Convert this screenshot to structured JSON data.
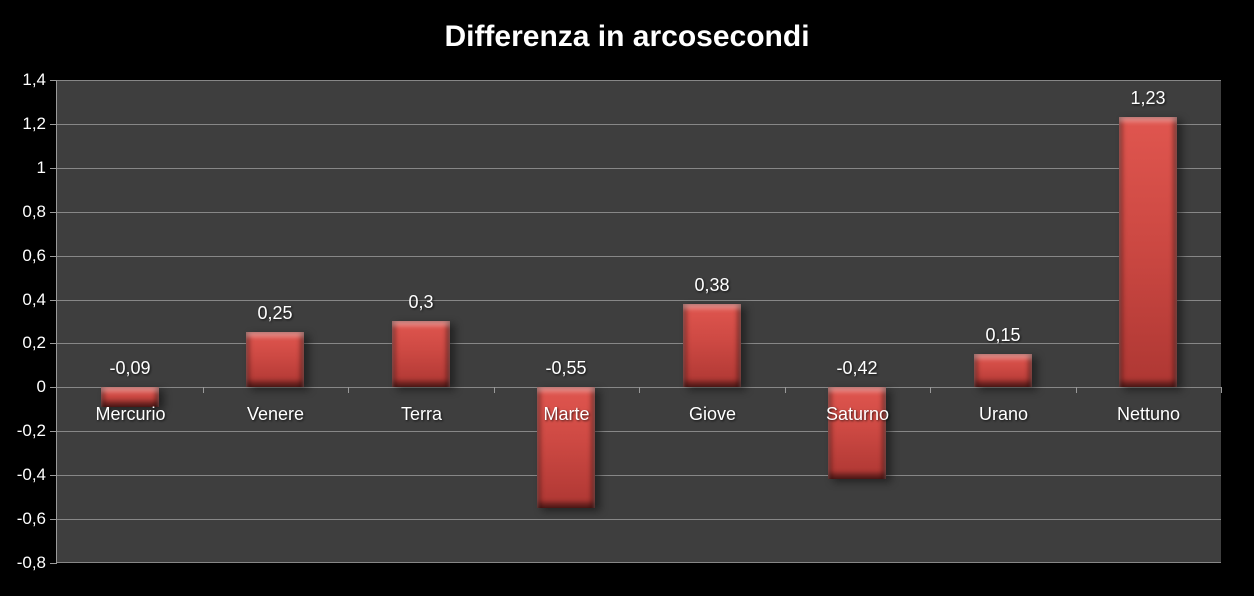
{
  "title": "Differenza in arcosecondi",
  "chart_data": {
    "type": "bar",
    "title": "Differenza in arcosecondi",
    "categories": [
      "Mercurio",
      "Venere",
      "Terra",
      "Marte",
      "Giove",
      "Saturno",
      "Urano",
      "Nettuno"
    ],
    "values": [
      -0.09,
      0.25,
      0.3,
      -0.55,
      0.38,
      -0.42,
      0.15,
      1.23
    ],
    "value_labels": [
      "-0,09",
      "0,25",
      "0,3",
      "-0,55",
      "0,38",
      "-0,42",
      "0,15",
      "1,23"
    ],
    "xlabel": "",
    "ylabel": "",
    "ylim": [
      -0.8,
      1.4
    ],
    "ytick_step": 0.2,
    "ytick_labels": [
      "1,4",
      "1,2",
      "1",
      "0,8",
      "0,6",
      "0,4",
      "0,2",
      "0",
      "-0,2",
      "-0,4",
      "-0,6",
      "-0,8"
    ],
    "grid": true,
    "legend": false,
    "series_color": "#c94641"
  },
  "colors": {
    "background": "#000000",
    "plot_background": "#3e3e3e",
    "gridline": "#878787",
    "axis": "#9a9a9a",
    "text": "#ffffff",
    "bar_top": "#e0564f",
    "bar_mid": "#cd4943",
    "bar_bottom": "#ae3733"
  }
}
